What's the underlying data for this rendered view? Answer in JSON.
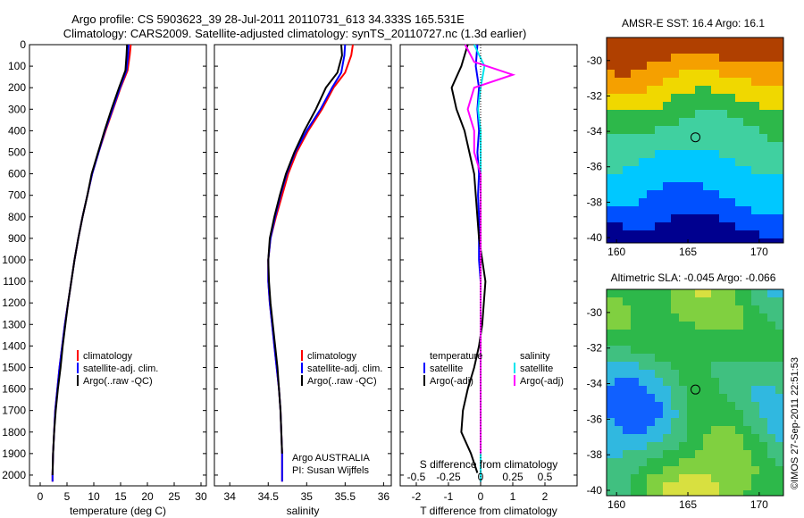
{
  "header": {
    "title_line1": "Argo profile: CS 5903623_39 28-Jul-2011 20110731_613 34.333S 165.531E",
    "title_line2": "Climatology: CARS2009. Satellite-adjusted climatology: synTS_20110727.nc (1.3d earlier)"
  },
  "stamp": "©IMOS 27-Sep-2011 22:51:53",
  "colors": {
    "climatology": "#ff0000",
    "satellite": "#0000ff",
    "argo": "#000000",
    "sal_satellite": "#00e5ee",
    "sal_argo": "#ff00ff"
  },
  "chart_data": [
    {
      "type": "line",
      "xlabel": "temperature (deg C)",
      "xticks": [
        "0",
        "5",
        "10",
        "15",
        "20",
        "25",
        "30"
      ],
      "xlim": [
        -2,
        31
      ],
      "ylim": [
        0,
        2050
      ],
      "yticks": [
        "0",
        "100",
        "200",
        "300",
        "400",
        "500",
        "600",
        "700",
        "800",
        "900",
        "1000",
        "1100",
        "1200",
        "1300",
        "1400",
        "1500",
        "1600",
        "1700",
        "1800",
        "1900",
        "2000"
      ],
      "legend": [
        "climatology",
        "satellite-adj. clim.",
        "Argo(..raw -QC)"
      ],
      "series": [
        {
          "name": "climatology",
          "color": "#ff0000",
          "x": [
            16.9,
            16.7,
            16.3,
            15.0,
            13.6,
            12.2,
            10.9,
            9.7,
            8.8,
            7.9,
            7.1,
            6.4,
            5.8,
            5.2,
            4.6,
            4.1,
            3.6,
            3.2,
            2.8,
            2.6,
            2.4,
            2.3,
            2.3
          ],
          "y": [
            0,
            50,
            120,
            200,
            300,
            400,
            500,
            600,
            700,
            800,
            900,
            1000,
            1100,
            1200,
            1300,
            1400,
            1500,
            1600,
            1700,
            1800,
            1900,
            2000,
            2030
          ]
        },
        {
          "name": "satellite-adj. clim.",
          "color": "#0000ff",
          "x": [
            16.5,
            16.4,
            16.1,
            14.9,
            13.5,
            12.1,
            10.9,
            9.7,
            8.8,
            7.9,
            7.1,
            6.4,
            5.8,
            5.2,
            4.6,
            4.1,
            3.6,
            3.2,
            2.8,
            2.6,
            2.4,
            2.3,
            2.3
          ],
          "y": [
            0,
            50,
            120,
            200,
            300,
            400,
            500,
            600,
            700,
            800,
            900,
            1000,
            1100,
            1200,
            1300,
            1400,
            1500,
            1600,
            1700,
            1800,
            1900,
            2000,
            2030
          ]
        },
        {
          "name": "Argo(..raw -QC)",
          "color": "#000000",
          "x": [
            16.2,
            16.1,
            15.9,
            14.7,
            13.3,
            12.0,
            10.8,
            9.6,
            8.8,
            7.9,
            7.1,
            6.4,
            5.8,
            5.2,
            4.7,
            4.2,
            3.8,
            3.3,
            2.9,
            2.6,
            2.4,
            2.3
          ],
          "y": [
            0,
            50,
            120,
            200,
            300,
            400,
            500,
            600,
            700,
            800,
            900,
            1000,
            1100,
            1200,
            1300,
            1400,
            1500,
            1600,
            1700,
            1800,
            1900,
            2000
          ]
        }
      ]
    },
    {
      "type": "line",
      "xlabel": "salinity",
      "xticks": [
        "34",
        "34.5",
        "35",
        "35.5",
        "36"
      ],
      "xlim": [
        33.8,
        36.1
      ],
      "ylim": [
        0,
        2050
      ],
      "legend": [
        "climatology",
        "satellite-adj. clim.",
        "Argo(..raw -QC)"
      ],
      "annotation1": "Argo AUSTRALIA",
      "annotation2": "PI: Susan Wijffels",
      "series": [
        {
          "name": "climatology",
          "color": "#ff0000",
          "x": [
            35.6,
            35.58,
            35.5,
            35.35,
            35.2,
            35.02,
            34.87,
            34.76,
            34.68,
            34.6,
            34.53,
            34.5,
            34.5,
            34.52,
            34.55,
            34.58,
            34.61,
            34.64,
            34.66,
            34.67,
            34.68,
            34.68
          ],
          "y": [
            0,
            50,
            130,
            200,
            300,
            400,
            500,
            600,
            700,
            800,
            900,
            1000,
            1100,
            1200,
            1300,
            1400,
            1500,
            1600,
            1700,
            1800,
            1900,
            2030
          ]
        },
        {
          "name": "satellite-adj. clim.",
          "color": "#0000ff",
          "x": [
            35.5,
            35.49,
            35.45,
            35.33,
            35.18,
            35.0,
            34.85,
            34.74,
            34.66,
            34.59,
            34.53,
            34.5,
            34.5,
            34.52,
            34.55,
            34.58,
            34.61,
            34.64,
            34.66,
            34.67,
            34.68,
            34.68
          ],
          "y": [
            0,
            50,
            130,
            200,
            300,
            400,
            500,
            600,
            700,
            800,
            900,
            1000,
            1100,
            1200,
            1300,
            1400,
            1500,
            1600,
            1700,
            1800,
            1900,
            2030
          ]
        },
        {
          "name": "Argo(..raw -QC)",
          "color": "#000000",
          "x": [
            35.45,
            35.46,
            35.4,
            35.25,
            35.12,
            34.97,
            34.84,
            34.73,
            34.65,
            34.58,
            34.52,
            34.5,
            34.51,
            34.53,
            34.56,
            34.59,
            34.62,
            34.64,
            34.66,
            34.67,
            34.68
          ],
          "y": [
            0,
            50,
            130,
            200,
            300,
            400,
            500,
            600,
            700,
            800,
            900,
            1000,
            1100,
            1200,
            1300,
            1400,
            1500,
            1600,
            1700,
            1800,
            1900
          ]
        }
      ]
    },
    {
      "type": "line",
      "xlabel": "T difference from climatology",
      "xlabel_top": "S difference from climatology",
      "xticks": [
        "-2",
        "-1",
        "0",
        "1",
        "2"
      ],
      "xticks_top": [
        "-0.5",
        "-0.25",
        "0",
        "0.25",
        "0.5"
      ],
      "xlim": [
        -2.5,
        3.0
      ],
      "ylim": [
        0,
        2050
      ],
      "legend_left_title": "temperature",
      "legend_right_title": "salinity",
      "legend_left": [
        "satellite",
        "Argo(-adj)"
      ],
      "legend_right": [
        "satellite",
        "Argo(-adj)"
      ],
      "series": [
        {
          "name": "T satellite",
          "color": "#0000ff",
          "x": [
            -0.1,
            -0.15,
            -0.05,
            -0.1,
            -0.05,
            -0.1,
            -0.05,
            -0.08,
            -0.05,
            -0.05,
            -0.05,
            0,
            0,
            0,
            0,
            0,
            0,
            0,
            0,
            0,
            0
          ],
          "y": [
            0,
            100,
            200,
            300,
            400,
            500,
            600,
            700,
            800,
            900,
            1000,
            1100,
            1200,
            1300,
            1400,
            1500,
            1600,
            1700,
            1800,
            1900,
            2030
          ]
        },
        {
          "name": "T Argo(-adj)",
          "color": "#000000",
          "x": [
            -0.4,
            -0.6,
            -0.9,
            -0.75,
            -0.5,
            -0.35,
            -0.2,
            -0.15,
            -0.1,
            -0.05,
            0.05,
            0.15,
            0.1,
            0.05,
            -0.05,
            -0.2,
            -0.4,
            -0.55,
            -0.6,
            -0.3,
            -0.1
          ],
          "y": [
            0,
            100,
            200,
            300,
            400,
            500,
            600,
            700,
            800,
            900,
            1000,
            1100,
            1200,
            1300,
            1400,
            1500,
            1600,
            1700,
            1800,
            1900,
            1990
          ]
        },
        {
          "name": "S satellite",
          "color": "#00e5ee",
          "x": [
            -0.05,
            0.03,
            0,
            -0.02,
            0,
            0,
            0,
            0,
            0,
            0,
            0,
            0,
            0,
            0,
            0,
            0,
            0,
            0,
            0,
            0,
            0
          ],
          "y": [
            0,
            100,
            200,
            300,
            400,
            500,
            600,
            700,
            800,
            900,
            1000,
            1100,
            1200,
            1300,
            1400,
            1500,
            1600,
            1700,
            1800,
            1900,
            2030
          ]
        },
        {
          "name": "S Argo(-adj)",
          "color": "#ff00ff",
          "x": [
            -0.12,
            -0.05,
            0.25,
            -0.05,
            -0.1,
            -0.05,
            -0.05,
            0,
            0,
            0,
            0,
            0,
            0,
            0,
            0,
            0,
            0,
            0,
            0,
            0
          ],
          "y": [
            0,
            80,
            140,
            200,
            300,
            400,
            500,
            600,
            700,
            800,
            900,
            1000,
            1100,
            1200,
            1300,
            1400,
            1500,
            1600,
            1700,
            1900
          ]
        }
      ]
    },
    {
      "type": "heatmap",
      "title": "AMSR-E SST: 16.4 Argo: 16.1",
      "xticks": [
        "160",
        "165",
        "170"
      ],
      "yticks": [
        "-30",
        "-32",
        "-34",
        "-36",
        "-38",
        "-40"
      ],
      "xlim": [
        159.3,
        171.7
      ],
      "ylim": [
        -40.3,
        -28.7
      ],
      "marker": {
        "lon": 165.531,
        "lat": -34.333
      },
      "colormap": [
        "#00008f",
        "#0050ff",
        "#00c8ff",
        "#40d0a0",
        "#2db84a",
        "#f0d800",
        "#f5a000",
        "#b04000"
      ]
    },
    {
      "type": "heatmap",
      "title": "Altimetric SLA: -0.045 Argo: -0.066",
      "xticks": [
        "160",
        "165",
        "170"
      ],
      "yticks": [
        "-30",
        "-32",
        "-34",
        "-36",
        "-38",
        "-40"
      ],
      "xlim": [
        159.3,
        171.7
      ],
      "ylim": [
        -40.3,
        -28.7
      ],
      "marker": {
        "lon": 165.531,
        "lat": -34.333
      },
      "colormap": [
        "#1060ff",
        "#30b8e0",
        "#40c080",
        "#2db84a",
        "#80d040",
        "#d8e040",
        "#f0b000"
      ]
    }
  ]
}
